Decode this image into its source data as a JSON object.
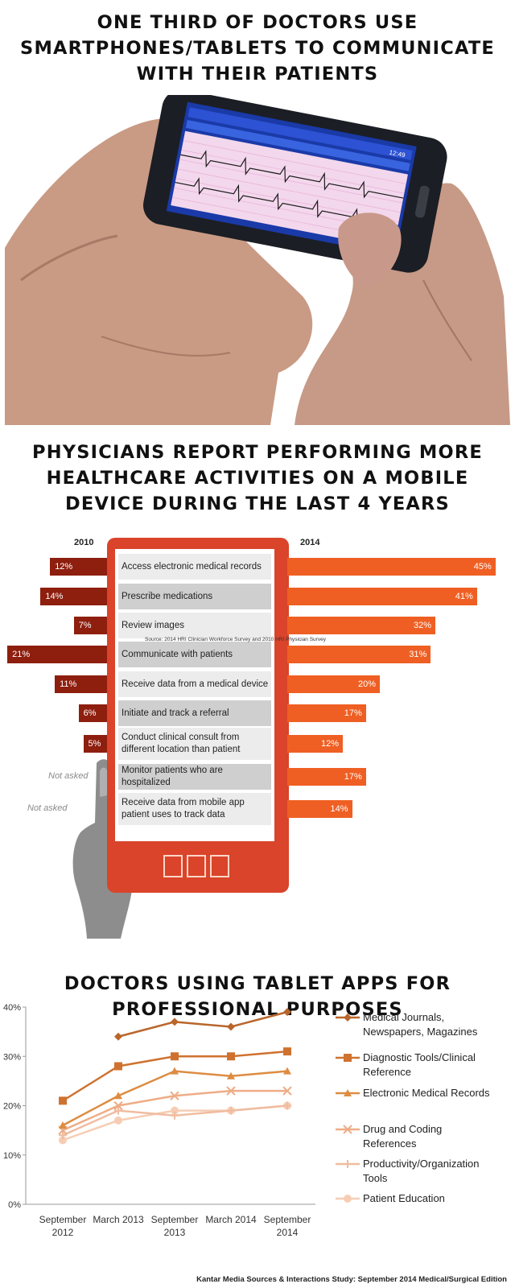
{
  "headings": {
    "one": [
      "ONE THIRD OF DOCTORS USE",
      "SMARTPHONES/TABLETS TO COMMUNICATE",
      "WITH THEIR PATIENTS"
    ],
    "two": [
      "PHYSICIANS REPORT PERFORMING MORE",
      "HEALTHCARE ACTIVITIES ON A MOBILE",
      "DEVICE DURING THE LAST 4 YEARS"
    ],
    "three": [
      "DOCTORS USING TABLET APPS FOR",
      "PROFESSIONAL PURPOSES"
    ]
  },
  "photo_screen": {
    "status_bar": "12:49"
  },
  "chart_data": [
    {
      "type": "bar",
      "series": [
        {
          "name": "2010",
          "values": [
            12,
            14,
            7,
            21,
            11,
            6,
            5,
            null,
            null
          ],
          "labels": [
            "12%",
            "14%",
            "7%",
            "21%",
            "11%",
            "6%",
            "5%",
            "Not asked",
            "Not asked"
          ]
        },
        {
          "name": "2014",
          "values": [
            45,
            41,
            32,
            31,
            20,
            17,
            12,
            17,
            14
          ],
          "labels": [
            "45%",
            "41%",
            "32%",
            "31%",
            "20%",
            "17%",
            "12%",
            "17%",
            "14%"
          ]
        }
      ],
      "categories": [
        [
          "Access electronic medical records"
        ],
        [
          "Prescribe medications"
        ],
        [
          "Review images"
        ],
        [
          "Communicate with patients"
        ],
        [
          "Receive data from a medical device"
        ],
        [
          "Initiate and track a referral"
        ],
        [
          "Conduct clinical consult from",
          "different location than patient"
        ],
        [
          "Monitor patients who are hospitalized"
        ],
        [
          "Receive data from mobile app",
          "patient uses to track data"
        ]
      ],
      "source": "Source: 2014 HRI Clinician Workforce Survey and 2010 HRI Physician Survey",
      "colors": {
        "2010": "#8e1e0e",
        "2014": "#ef5f23",
        "device": "#d9442a"
      }
    },
    {
      "type": "line",
      "x": [
        "September 2012",
        "March 2013",
        "September 2013",
        "March 2014",
        "September 2014"
      ],
      "x_tick_labels": [
        [
          "September",
          "2012"
        ],
        [
          "March 2013"
        ],
        [
          "September",
          "2013"
        ],
        [
          "March 2014"
        ],
        [
          "September",
          "2014"
        ]
      ],
      "y_ticks": [
        "0%",
        "10%",
        "20%",
        "30%",
        "40%"
      ],
      "ylim": [
        0,
        40
      ],
      "legend_position": "right",
      "series": [
        {
          "name": [
            "Medical Journals,",
            "Newspapers, Magazines"
          ],
          "values": [
            null,
            34,
            37,
            36,
            39
          ],
          "color": "#b9662b",
          "marker": "diamond"
        },
        {
          "name": [
            "Diagnostic Tools/Clinical",
            "Reference"
          ],
          "values": [
            21,
            28,
            30,
            30,
            31
          ],
          "color": "#cf722f",
          "marker": "square"
        },
        {
          "name": [
            "Electronic Medical Records"
          ],
          "values": [
            16,
            22,
            27,
            26,
            27
          ],
          "color": "#dd8c42",
          "marker": "triangle"
        },
        {
          "name": [
            "Drug and Coding",
            "References"
          ],
          "values": [
            15,
            20,
            22,
            23,
            23
          ],
          "color": "#eeac86",
          "marker": "x"
        },
        {
          "name": [
            "Productivity/Organization",
            "Tools"
          ],
          "values": [
            14,
            19,
            18,
            19,
            20
          ],
          "color": "#f0bca0",
          "marker": "plus"
        },
        {
          "name": [
            "Patient Education"
          ],
          "values": [
            13,
            17,
            19,
            19,
            20
          ],
          "color": "#f6cdb4",
          "marker": "circle"
        }
      ]
    }
  ],
  "credit": "Kantar Media Sources & Interactions Study: September 2014 Medical/Surgical Edition"
}
